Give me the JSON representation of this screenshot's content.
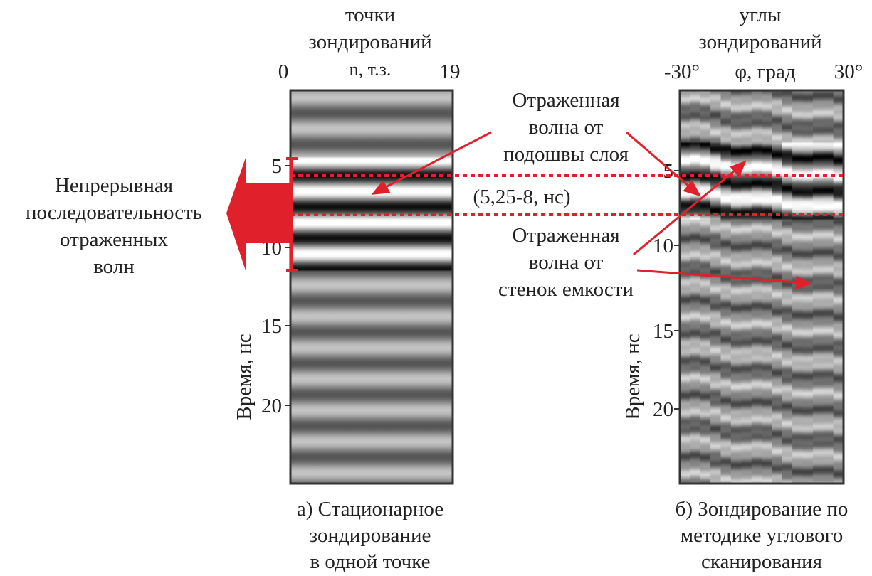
{
  "panel_a": {
    "top_label": [
      "точки",
      "зондирований"
    ],
    "x_axis": {
      "min": "0",
      "label": "n, т.з.",
      "max": "19"
    },
    "y_axis": {
      "label": "Время, нс",
      "ticks": [
        "5",
        "10",
        "15",
        "20"
      ]
    },
    "caption": [
      "а) Стационарное",
      "зондирование",
      "в одной точке"
    ]
  },
  "panel_b": {
    "top_label": [
      "углы",
      "зондирований"
    ],
    "x_axis": {
      "min": "-30°",
      "label": "φ, град",
      "max": "30°"
    },
    "y_axis": {
      "label": "Время, нс",
      "ticks": [
        "5",
        "10",
        "15",
        "20"
      ]
    },
    "caption": [
      "б) Зондирование по",
      "методике углового",
      "сканирования"
    ]
  },
  "annotations": {
    "continuous": [
      "Непрерывная",
      "последовательность",
      "отраженных",
      "волн"
    ],
    "reflected_sole": [
      "Отраженная",
      "волна от",
      "подошвы слоя"
    ],
    "interval": "(5,25-8, нс)",
    "reflected_walls": [
      "Отраженная",
      "волна от",
      "стенок емкости"
    ]
  }
}
